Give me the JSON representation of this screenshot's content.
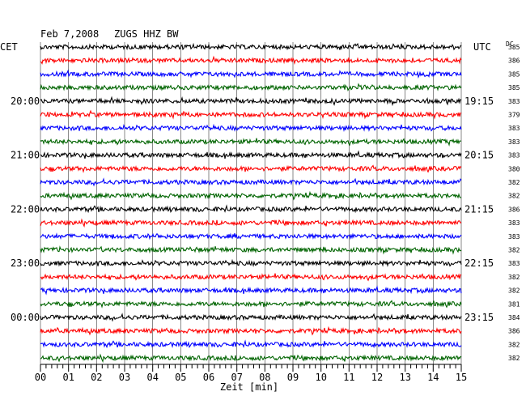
{
  "header": {
    "date": "Feb 7,2008",
    "station": "ZUGS HHZ BW",
    "left_zone": "CET",
    "right_zone": "UTC",
    "dc_label": "DC"
  },
  "chart_data": {
    "type": "line",
    "title": "Feb 7,2008   ZUGS HHZ BW",
    "xlabel": "Zeit [min]",
    "xlim": [
      0,
      15
    ],
    "x_ticks": [
      "00",
      "01",
      "02",
      "03",
      "04",
      "05",
      "06",
      "07",
      "08",
      "09",
      "10",
      "11",
      "12",
      "13",
      "14",
      "15"
    ],
    "left_time_labels": [
      {
        "row": 4,
        "label": "20:00"
      },
      {
        "row": 8,
        "label": "21:00"
      },
      {
        "row": 12,
        "label": "22:00"
      },
      {
        "row": 16,
        "label": "23:00"
      },
      {
        "row": 20,
        "label": "00:00"
      }
    ],
    "right_time_labels": [
      {
        "row": 4,
        "label": "19:15"
      },
      {
        "row": 8,
        "label": "20:15"
      },
      {
        "row": 12,
        "label": "21:15"
      },
      {
        "row": 16,
        "label": "22:15"
      },
      {
        "row": 20,
        "label": "23:15"
      }
    ],
    "trace_colors": [
      "#000000",
      "#ff0000",
      "#0000ff",
      "#006400"
    ],
    "dc_values": [
      "385",
      "386",
      "385",
      "385",
      "383",
      "379",
      "383",
      "383",
      "383",
      "380",
      "382",
      "382",
      "386",
      "383",
      "383",
      "382",
      "383",
      "382",
      "382",
      "381",
      "384",
      "386",
      "382",
      "382"
    ],
    "trace_count": 24
  }
}
